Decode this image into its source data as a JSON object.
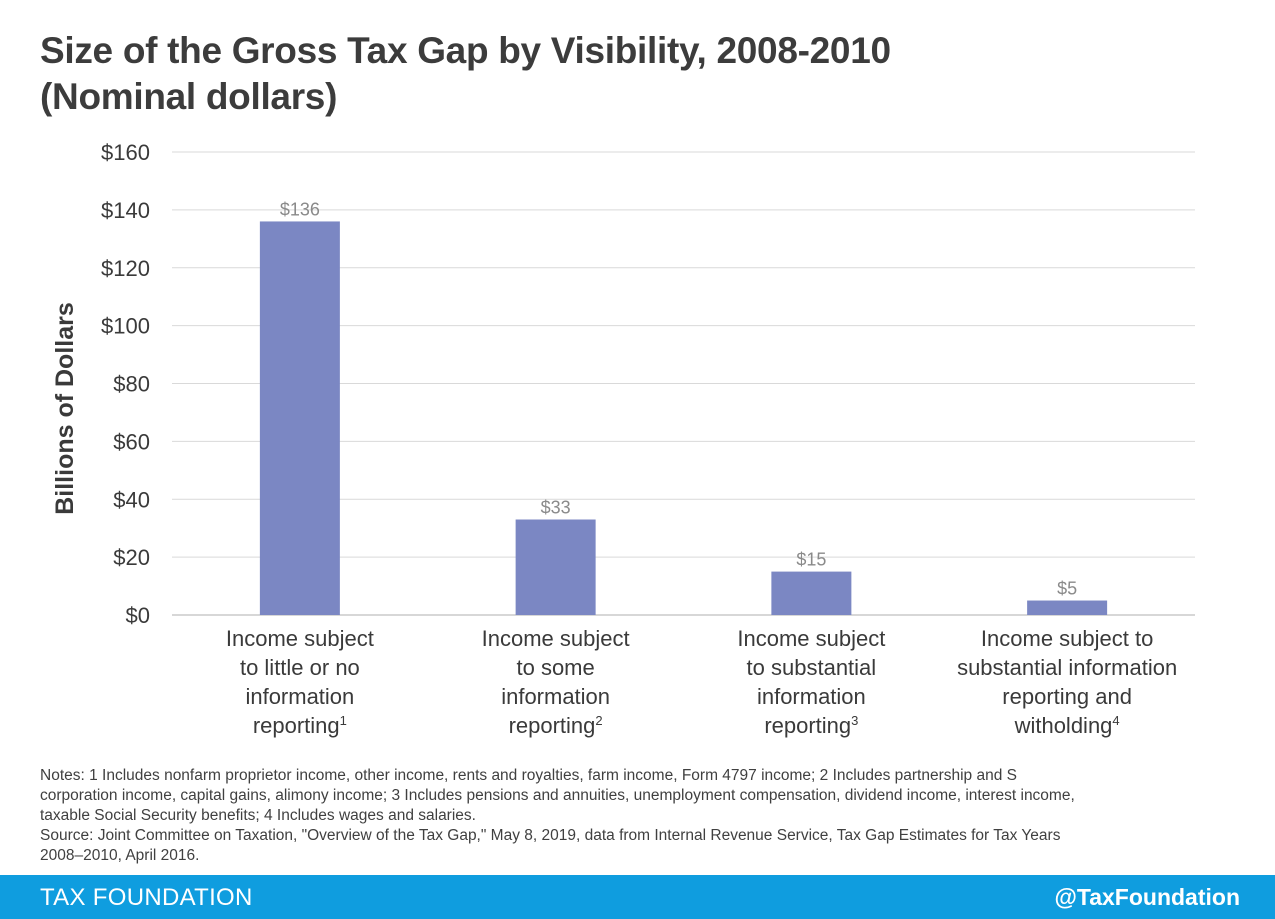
{
  "title_lines": [
    "Size of the Gross Tax Gap by Visibility, 2008-2010",
    "(Nominal dollars)"
  ],
  "chart_data": {
    "type": "bar",
    "title": "Size of the Gross Tax Gap by Visibility, 2008-2010 (Nominal dollars)",
    "ylabel": "Billions of Dollars",
    "xlabel": "",
    "ylim": [
      0,
      160
    ],
    "yticks": [
      0,
      20,
      40,
      60,
      80,
      100,
      120,
      140,
      160
    ],
    "ytick_labels": [
      "$0",
      "$20",
      "$40",
      "$60",
      "$80",
      "$100",
      "$120",
      "$140",
      "$160"
    ],
    "categories": [
      "Income subject to little or no information reporting",
      "Income subject to some information reporting",
      "Income subject to substantial information reporting",
      "Income subject to substantial information reporting and witholding"
    ],
    "category_label_lines": [
      [
        "Income subject",
        "to little or no",
        "information",
        "reporting"
      ],
      [
        "Income subject",
        "to some",
        "information",
        "reporting"
      ],
      [
        "Income subject",
        "to substantial",
        "information",
        "reporting"
      ],
      [
        "Income subject to",
        "substantial information",
        "reporting and",
        "witholding"
      ]
    ],
    "category_footnotes": [
      "1",
      "2",
      "3",
      "4"
    ],
    "values": [
      136,
      33,
      15,
      5
    ],
    "value_labels": [
      "$136",
      "$33",
      "$15",
      "$5"
    ],
    "bar_color": "#7b87c3",
    "grid": true,
    "grid_color": "#d9d9d9"
  },
  "notes": [
    "Notes: 1 Includes nonfarm proprietor income, other income, rents and royalties, farm income, Form 4797 income; 2 Includes partnership and S",
    "corporation income, capital gains, alimony income; 3 Includes pensions and annuities, unemployment compensation, dividend income, interest income,",
    "taxable Social Security benefits; 4 Includes wages and salaries.",
    "Source: Joint Committee on Taxation, \"Overview of the Tax Gap,\" May 8, 2019, data from Internal Revenue Service, Tax Gap Estimates for Tax Years",
    "2008–2010, April 2016."
  ],
  "footer": {
    "brand": "TAX FOUNDATION",
    "handle": "@TaxFoundation",
    "color": "#0f9ddf"
  }
}
